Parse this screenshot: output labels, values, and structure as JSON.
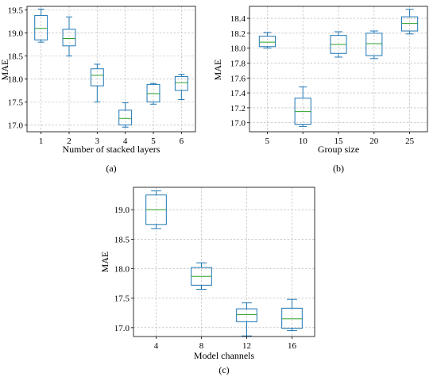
{
  "chart_data": [
    {
      "type": "box",
      "panel": "a",
      "caption": "(a)",
      "xlabel": "Number of stacked layers",
      "ylabel": "MAE",
      "ylim": [
        16.85,
        19.58
      ],
      "yticks": [
        17.0,
        17.5,
        18.0,
        18.5,
        19.0,
        19.5
      ],
      "grid": true,
      "categories": [
        "1",
        "2",
        "3",
        "4",
        "5",
        "6"
      ],
      "boxes": [
        {
          "min": 18.8,
          "q1": 18.85,
          "median": 19.1,
          "q3": 19.38,
          "max": 19.52
        },
        {
          "min": 18.5,
          "q1": 18.72,
          "median": 18.88,
          "q3": 19.08,
          "max": 19.35
        },
        {
          "min": 17.5,
          "q1": 17.85,
          "median": 18.08,
          "q3": 18.22,
          "max": 18.32
        },
        {
          "min": 16.95,
          "q1": 17.0,
          "median": 17.14,
          "q3": 17.32,
          "max": 17.48
        },
        {
          "min": 17.45,
          "q1": 17.5,
          "median": 17.68,
          "q3": 17.88,
          "max": 17.9
        },
        {
          "min": 17.55,
          "q1": 17.75,
          "median": 17.92,
          "q3": 18.05,
          "max": 18.1
        }
      ]
    },
    {
      "type": "box",
      "panel": "b",
      "caption": "(b)",
      "xlabel": "Group size",
      "ylabel": "MAE",
      "ylim": [
        16.88,
        18.56
      ],
      "yticks": [
        17.0,
        17.2,
        17.4,
        17.6,
        17.8,
        18.0,
        18.2,
        18.4
      ],
      "grid": true,
      "categories": [
        "5",
        "10",
        "15",
        "20",
        "25"
      ],
      "boxes": [
        {
          "min": 18.0,
          "q1": 18.02,
          "median": 18.08,
          "q3": 18.16,
          "max": 18.21
        },
        {
          "min": 16.95,
          "q1": 16.98,
          "median": 17.15,
          "q3": 17.33,
          "max": 17.48
        },
        {
          "min": 17.88,
          "q1": 17.93,
          "median": 18.05,
          "q3": 18.17,
          "max": 18.22
        },
        {
          "min": 17.86,
          "q1": 17.9,
          "median": 18.06,
          "q3": 18.2,
          "max": 18.23
        },
        {
          "min": 18.19,
          "q1": 18.23,
          "median": 18.33,
          "q3": 18.42,
          "max": 18.52
        }
      ]
    },
    {
      "type": "box",
      "panel": "c",
      "caption": "(c)",
      "xlabel": "Model channels",
      "ylabel": "MAE",
      "ylim": [
        16.85,
        19.38
      ],
      "yticks": [
        17.0,
        17.5,
        18.0,
        18.5,
        19.0
      ],
      "grid": true,
      "categories": [
        "4",
        "8",
        "12",
        "16"
      ],
      "boxes": [
        {
          "min": 18.68,
          "q1": 18.75,
          "median": 19.0,
          "q3": 19.25,
          "max": 19.32
        },
        {
          "min": 17.65,
          "q1": 17.72,
          "median": 17.87,
          "q3": 18.02,
          "max": 18.1
        },
        {
          "min": 16.86,
          "q1": 17.1,
          "median": 17.22,
          "q3": 17.32,
          "max": 17.42
        },
        {
          "min": 16.95,
          "q1": 16.99,
          "median": 17.15,
          "q3": 17.33,
          "max": 17.48
        }
      ]
    }
  ]
}
